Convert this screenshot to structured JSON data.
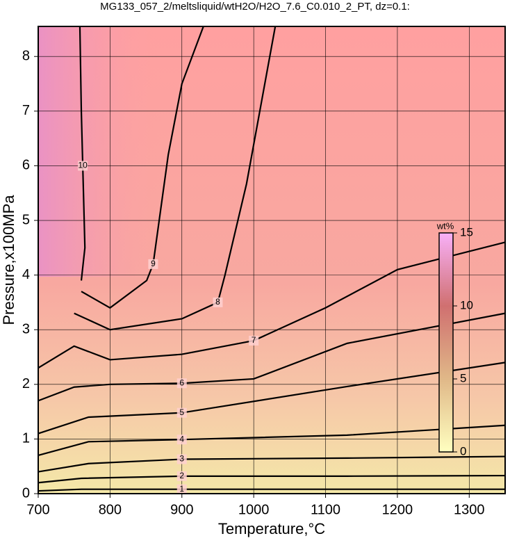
{
  "chart_data": {
    "type": "contour",
    "title": "MG133_057_2/meltsliquid/wtH2O/H2O_7.6_C0.010_2_PT, dz=0.1:",
    "xlabel": "Temperature,°C",
    "ylabel": "Pressure,x100MPa",
    "xlim": [
      700,
      1350
    ],
    "ylim": [
      0,
      8.55
    ],
    "xticks": [
      700,
      800,
      900,
      1000,
      1100,
      1200,
      1300
    ],
    "yticks": [
      0,
      1,
      2,
      3,
      4,
      5,
      6,
      7,
      8
    ],
    "grid": true,
    "line_color": "#000000",
    "contours": [
      {
        "level": 1,
        "x": [
          700,
          760,
          900,
          1130,
          1350
        ],
        "y": [
          0.05,
          0.08,
          0.08,
          0.08,
          0.08
        ]
      },
      {
        "level": 2,
        "x": [
          700,
          760,
          900,
          1130,
          1350
        ],
        "y": [
          0.2,
          0.28,
          0.32,
          0.32,
          0.33
        ]
      },
      {
        "level": 3,
        "x": [
          700,
          770,
          900,
          1130,
          1350
        ],
        "y": [
          0.4,
          0.55,
          0.63,
          0.65,
          0.68
        ]
      },
      {
        "level": 4,
        "x": [
          700,
          770,
          900,
          1130,
          1350
        ],
        "y": [
          0.7,
          0.95,
          0.99,
          1.07,
          1.25
        ]
      },
      {
        "level": 5,
        "x": [
          700,
          770,
          900,
          1130,
          1350
        ],
        "y": [
          1.1,
          1.4,
          1.48,
          1.96,
          2.4
        ]
      },
      {
        "level": 6,
        "x": [
          700,
          750,
          800,
          900,
          1000,
          1130,
          1350
        ],
        "y": [
          1.7,
          1.95,
          2.0,
          2.02,
          2.1,
          2.75,
          3.3
        ]
      },
      {
        "level": 7,
        "x": [
          700,
          750,
          800,
          900,
          1000,
          1100,
          1200,
          1350
        ],
        "y": [
          2.3,
          2.7,
          2.45,
          2.55,
          2.8,
          3.4,
          4.1,
          4.6
        ]
      },
      {
        "level": 8,
        "x": [
          750,
          800,
          900,
          950,
          960,
          990,
          1030
        ],
        "y": [
          3.3,
          3.0,
          3.2,
          3.5,
          4.0,
          5.67,
          8.55
        ]
      },
      {
        "level": 9,
        "x": [
          760,
          800,
          851,
          860,
          881,
          900,
          930
        ],
        "y": [
          3.7,
          3.4,
          3.9,
          4.2,
          6.2,
          7.5,
          8.55
        ]
      },
      {
        "level": 10,
        "x": [
          760,
          765,
          762,
          760,
          758
        ],
        "y": [
          3.9,
          4.5,
          6.0,
          7.0,
          8.55
        ]
      }
    ],
    "colorbar": {
      "title": "wt%",
      "clim": [
        0,
        15
      ],
      "cticks": [
        0,
        5,
        10,
        15
      ],
      "stops": [
        {
          "value": 0,
          "color": "#ffffc0"
        },
        {
          "value": 5,
          "color": "#e0b888"
        },
        {
          "value": 10,
          "color": "#d07070"
        },
        {
          "value": 15,
          "color": "#f8b0f8"
        }
      ]
    }
  }
}
